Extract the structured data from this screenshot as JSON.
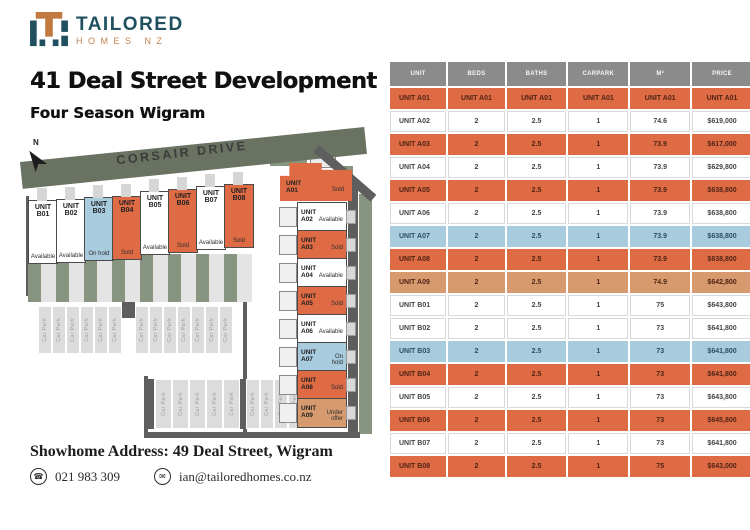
{
  "brand": {
    "name": "TAILORED",
    "sub": "HOMES NZ"
  },
  "page": {
    "title": "41 Deal Street Development",
    "subtitle": "Four Season Wigram"
  },
  "siteplan": {
    "street": "CORSAIR DRIVE",
    "compass": "N",
    "carpark_label": "Car Park",
    "carpark_row1_count": 13,
    "carpark_row2_count": 11,
    "b_units": [
      {
        "name": "UNIT B01",
        "status": "Available",
        "state": "available"
      },
      {
        "name": "UNIT B02",
        "status": "Available",
        "state": "available"
      },
      {
        "name": "UNIT B03",
        "status": "On hold",
        "state": "onhold"
      },
      {
        "name": "UNIT B04",
        "status": "Sold",
        "state": "sold"
      },
      {
        "name": "UNIT B05",
        "status": "Available",
        "state": "available"
      },
      {
        "name": "UNIT B06",
        "status": "Sold",
        "state": "sold"
      },
      {
        "name": "UNIT B07",
        "status": "Available",
        "state": "available"
      },
      {
        "name": "UNIT B08",
        "status": "Sold",
        "state": "sold"
      }
    ],
    "a_units": [
      {
        "name": "UNIT A01",
        "status": "Sold",
        "state": "sold"
      },
      {
        "name": "UNIT A02",
        "status": "Available",
        "state": "available"
      },
      {
        "name": "UNIT A03",
        "status": "Sold",
        "state": "sold"
      },
      {
        "name": "UNIT A04",
        "status": "Available",
        "state": "available"
      },
      {
        "name": "UNIT A05",
        "status": "Sold",
        "state": "sold"
      },
      {
        "name": "UNIT A06",
        "status": "Available",
        "state": "available"
      },
      {
        "name": "UNIT A07",
        "status": "On hold",
        "state": "onhold"
      },
      {
        "name": "UNIT A08",
        "status": "Sold",
        "state": "sold"
      },
      {
        "name": "UNIT A09",
        "status": "Under offer",
        "state": "underoffer"
      }
    ]
  },
  "table": {
    "headers": [
      "UNIT",
      "BEDS",
      "BATHS",
      "CARPARK",
      "M²",
      "PRICE"
    ],
    "rows": [
      {
        "cells": [
          "UNIT A01",
          "UNIT A01",
          "UNIT A01",
          "UNIT A01",
          "UNIT A01",
          "UNIT A01"
        ],
        "status": "sold"
      },
      {
        "cells": [
          "UNIT A02",
          "2",
          "2.5",
          "1",
          "74.6",
          "$619,000"
        ],
        "status": "available"
      },
      {
        "cells": [
          "UNIT A03",
          "2",
          "2.5",
          "1",
          "73.9",
          "$617,000"
        ],
        "status": "sold"
      },
      {
        "cells": [
          "UNIT A04",
          "2",
          "2.5",
          "1",
          "73.9",
          "$629,800"
        ],
        "status": "available"
      },
      {
        "cells": [
          "UNIT A05",
          "2",
          "2.5",
          "1",
          "73.9",
          "$638,800"
        ],
        "status": "sold"
      },
      {
        "cells": [
          "UNIT A06",
          "2",
          "2.5",
          "1",
          "73.9",
          "$638,800"
        ],
        "status": "available"
      },
      {
        "cells": [
          "UNIT A07",
          "2",
          "2.5",
          "1",
          "73.9",
          "$638,800"
        ],
        "status": "onhold"
      },
      {
        "cells": [
          "UNIT A08",
          "2",
          "2.5",
          "1",
          "73.9",
          "$638,800"
        ],
        "status": "sold"
      },
      {
        "cells": [
          "UNIT A09",
          "2",
          "2.5",
          "1",
          "74.9",
          "$642,800"
        ],
        "status": "underoffer"
      },
      {
        "cells": [
          "UNIT B01",
          "2",
          "2.5",
          "1",
          "75",
          "$643,800"
        ],
        "status": "available"
      },
      {
        "cells": [
          "UNIT B02",
          "2",
          "2.5",
          "1",
          "73",
          "$641,800"
        ],
        "status": "available"
      },
      {
        "cells": [
          "UNIT B03",
          "2",
          "2.5",
          "1",
          "73",
          "$641,800"
        ],
        "status": "onhold"
      },
      {
        "cells": [
          "UNIT B04",
          "2",
          "2.5",
          "1",
          "73",
          "$641,800"
        ],
        "status": "sold"
      },
      {
        "cells": [
          "UNIT B05",
          "2",
          "2.5",
          "1",
          "73",
          "$643,800"
        ],
        "status": "available"
      },
      {
        "cells": [
          "UNIT B06",
          "2",
          "2.5",
          "1",
          "73",
          "$645,800"
        ],
        "status": "sold"
      },
      {
        "cells": [
          "UNIT B07",
          "2",
          "2.5",
          "1",
          "73",
          "$641,800"
        ],
        "status": "available"
      },
      {
        "cells": [
          "UNIT B08",
          "2",
          "2.5",
          "1",
          "75",
          "$643,000"
        ],
        "status": "sold"
      }
    ]
  },
  "footer": {
    "address": "Showhome Address: 49 Deal Street, Wigram",
    "phone": "021 983 309",
    "email": "ian@tailoredhomes.co.nz"
  },
  "colors": {
    "teal": "#20505F",
    "copper": "#C28352",
    "header_gray": "#8B8B8B",
    "road": "#6A7261",
    "boundary": "#5E5E5E",
    "lawn": "#879580",
    "stall": "#DCDCDC",
    "status": {
      "sold": "#DE6B44",
      "onhold": "#A9CBDE",
      "underoffer": "#D69A6E",
      "available": "#FFFFFF"
    },
    "status_text": {
      "sold": "#4F2416",
      "onhold": "#2F4D63",
      "underoffer": "#4F2416",
      "available": "#444444"
    }
  }
}
